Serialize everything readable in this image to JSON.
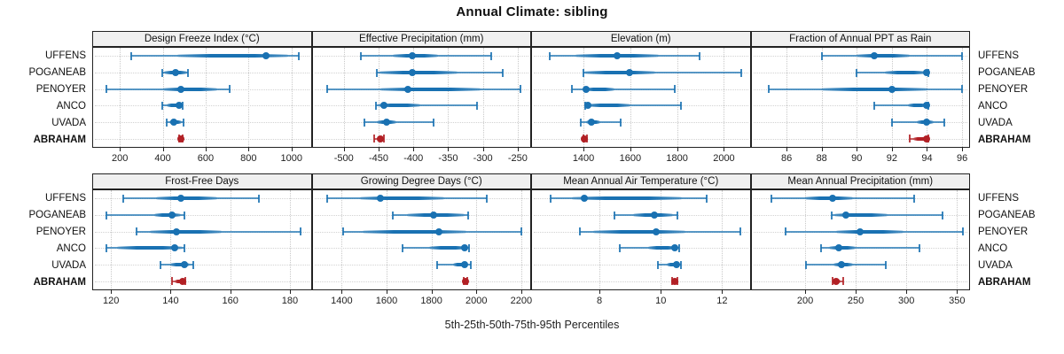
{
  "title": "Annual Climate: sibling",
  "footer": "5th-25th-50th-75th-95th Percentiles",
  "locations": [
    "UFFENS",
    "POGANEAB",
    "PENOYER",
    "ANCO",
    "UVADA",
    "ABRAHAM"
  ],
  "highlight_location": "ABRAHAM",
  "colors": {
    "series": "#1971b2",
    "highlight": "#b22025",
    "header_bg": "#f0f0f0",
    "panel_border": "#222222",
    "grid": "#c9c9c9",
    "text": "#111111"
  },
  "chart_data": {
    "type": "dot-whisker-trellis",
    "rows": 2,
    "cols": 4,
    "percentiles": [
      5,
      25,
      50,
      75,
      95
    ],
    "legend_note": "whisker = 5th-95th, thick bar = 25th-75th, dot = median; ABRAHAM highlighted",
    "panels": [
      {
        "title": "Design Freeze Index (°C)",
        "xlim": [
          75,
          1090
        ],
        "ticks": [
          200,
          400,
          600,
          800,
          1000
        ],
        "series": [
          {
            "name": "UFFENS",
            "values": [
              254,
              466,
              880,
              985,
              1034
            ]
          },
          {
            "name": "POGANEAB",
            "values": [
              398,
              407,
              458,
              513,
              517
            ]
          },
          {
            "name": "PENOYER",
            "values": [
              135,
              400,
              486,
              654,
              712
            ]
          },
          {
            "name": "ANCO",
            "values": [
              399,
              417,
              477,
              490,
              494
            ]
          },
          {
            "name": "UVADA",
            "values": [
              418,
              430,
              452,
              489,
              497
            ]
          },
          {
            "name": "ABRAHAM",
            "values": [
              477,
              481,
              486,
              490,
              493
            ]
          }
        ]
      },
      {
        "title": "Effective Precipitation (mm)",
        "xlim": [
          -545,
          -232
        ],
        "ticks": [
          -500,
          -450,
          -400,
          -350,
          -300,
          -250
        ],
        "series": [
          {
            "name": "UFFENS",
            "values": [
              -476,
              -430,
              -402,
              -364,
              -288
            ]
          },
          {
            "name": "POGANEAB",
            "values": [
              -452,
              -449,
              -401,
              -337,
              -272
            ]
          },
          {
            "name": "PENOYER",
            "values": [
              -524,
              -448,
              -408,
              -303,
              -246
            ]
          },
          {
            "name": "ANCO",
            "values": [
              -454,
              -451,
              -443,
              -390,
              -308
            ]
          },
          {
            "name": "UVADA",
            "values": [
              -471,
              -452,
              -439,
              -424,
              -371
            ]
          },
          {
            "name": "ABRAHAM",
            "values": [
              -456,
              -452,
              -448,
              -444,
              -442
            ]
          }
        ]
      },
      {
        "title": "Elevation (m)",
        "xlim": [
          1180,
          2110
        ],
        "ticks": [
          1400,
          1600,
          1800,
          2000
        ],
        "series": [
          {
            "name": "UFFENS",
            "values": [
              1254,
              1366,
              1545,
              1722,
              1895
            ]
          },
          {
            "name": "POGANEAB",
            "values": [
              1398,
              1404,
              1597,
              1706,
              2075
            ]
          },
          {
            "name": "PENOYER",
            "values": [
              1351,
              1403,
              1411,
              1532,
              1789
            ]
          },
          {
            "name": "ANCO",
            "values": [
              1408,
              1414,
              1420,
              1600,
              1818
            ]
          },
          {
            "name": "UVADA",
            "values": [
              1389,
              1410,
              1432,
              1471,
              1558
            ]
          },
          {
            "name": "ABRAHAM",
            "values": [
              1398,
              1401,
              1405,
              1409,
              1413
            ]
          }
        ]
      },
      {
        "title": "Fraction of Annual PPT as Rain",
        "xlim": [
          84,
          96.4
        ],
        "ticks": [
          86,
          88,
          90,
          92,
          94,
          96
        ],
        "series": [
          {
            "name": "UFFENS",
            "values": [
              88,
              90,
              91,
              93,
              96
            ]
          },
          {
            "name": "POGANEAB",
            "values": [
              90,
              91.6,
              94,
              94,
              94.1
            ]
          },
          {
            "name": "PENOYER",
            "values": [
              85,
              88,
              92,
              94.05,
              96
            ]
          },
          {
            "name": "ANCO",
            "values": [
              91,
              92.9,
              94,
              94.05,
              94.1
            ]
          },
          {
            "name": "UVADA",
            "values": [
              92,
              93.4,
              94,
              94.4,
              95
            ]
          },
          {
            "name": "ABRAHAM",
            "values": [
              93,
              93.2,
              94,
              94.03,
              94.1
            ]
          }
        ]
      },
      {
        "title": "Frost-Free Days",
        "xlim": [
          114,
          187
        ],
        "ticks": [
          120,
          140,
          160,
          180
        ],
        "series": [
          {
            "name": "UFFENS",
            "values": [
              124,
              135,
              143.5,
              155.5,
              169.5
            ]
          },
          {
            "name": "POGANEAB",
            "values": [
              118.5,
              134.5,
              140.5,
              143.5,
              144.5
            ]
          },
          {
            "name": "PENOYER",
            "values": [
              128.5,
              133,
              142,
              157,
              183.5
            ]
          },
          {
            "name": "ANCO",
            "values": [
              118.5,
              122,
              141.5,
              144,
              144.5
            ]
          },
          {
            "name": "UVADA",
            "values": [
              136.5,
              140,
              144.5,
              146.5,
              147.5
            ]
          },
          {
            "name": "ABRAHAM",
            "values": [
              140.5,
              141.5,
              144,
              144.5,
              145
            ]
          }
        ]
      },
      {
        "title": "Growing Degree Days (°C)",
        "xlim": [
          1270,
          2240
        ],
        "ticks": [
          1400,
          1600,
          1800,
          2000,
          2200
        ],
        "series": [
          {
            "name": "UFFENS",
            "values": [
              1334,
              1480,
              1573,
              1858,
              2048
            ]
          },
          {
            "name": "POGANEAB",
            "values": [
              1626,
              1690,
              1811,
              1948,
              1963
            ]
          },
          {
            "name": "PENOYER",
            "values": [
              1408,
              1492,
              1833,
              1955,
              2200
            ]
          },
          {
            "name": "ANCO",
            "values": [
              1673,
              1790,
              1948,
              1958,
              1968
            ]
          },
          {
            "name": "UVADA",
            "values": [
              1824,
              1896,
              1948,
              1960,
              1974
            ]
          },
          {
            "name": "ABRAHAM",
            "values": [
              1944,
              1949,
              1953,
              1957,
              1961
            ]
          }
        ]
      },
      {
        "title": "Mean Annual Air Temperature (°C)",
        "xlim": [
          5.8,
          12.9
        ],
        "ticks": [
          8,
          10,
          12
        ],
        "series": [
          {
            "name": "UFFENS",
            "values": [
              6.4,
              7.1,
              7.5,
              10.7,
              11.5
            ]
          },
          {
            "name": "POGANEAB",
            "values": [
              8.5,
              9.1,
              9.8,
              10.4,
              10.55
            ]
          },
          {
            "name": "PENOYER",
            "values": [
              7.35,
              7.8,
              9.85,
              10.8,
              12.6
            ]
          },
          {
            "name": "ANCO",
            "values": [
              8.65,
              9.6,
              10.45,
              10.52,
              10.6
            ]
          },
          {
            "name": "UVADA",
            "values": [
              9.9,
              10.2,
              10.5,
              10.6,
              10.65
            ]
          },
          {
            "name": "ABRAHAM",
            "values": [
              10.38,
              10.42,
              10.47,
              10.5,
              10.54
            ]
          }
        ]
      },
      {
        "title": "Mean Annual Precipitation (mm)",
        "xlim": [
          147,
          362
        ],
        "ticks": [
          200,
          250,
          300,
          350
        ],
        "series": [
          {
            "name": "UFFENS",
            "values": [
              167,
              200,
              227,
              247,
              308
            ]
          },
          {
            "name": "POGANEAB",
            "values": [
              226,
              229,
              240,
              281,
              336
            ]
          },
          {
            "name": "PENOYER",
            "values": [
              181,
              231,
              254,
              297,
              356
            ]
          },
          {
            "name": "ANCO",
            "values": [
              216,
              224,
              233,
              250,
              313
            ]
          },
          {
            "name": "UVADA",
            "values": [
              201,
              228,
              236,
              247,
              280
            ]
          },
          {
            "name": "ABRAHAM",
            "values": [
              227,
              229,
              231,
              235,
              238
            ]
          }
        ]
      }
    ]
  }
}
